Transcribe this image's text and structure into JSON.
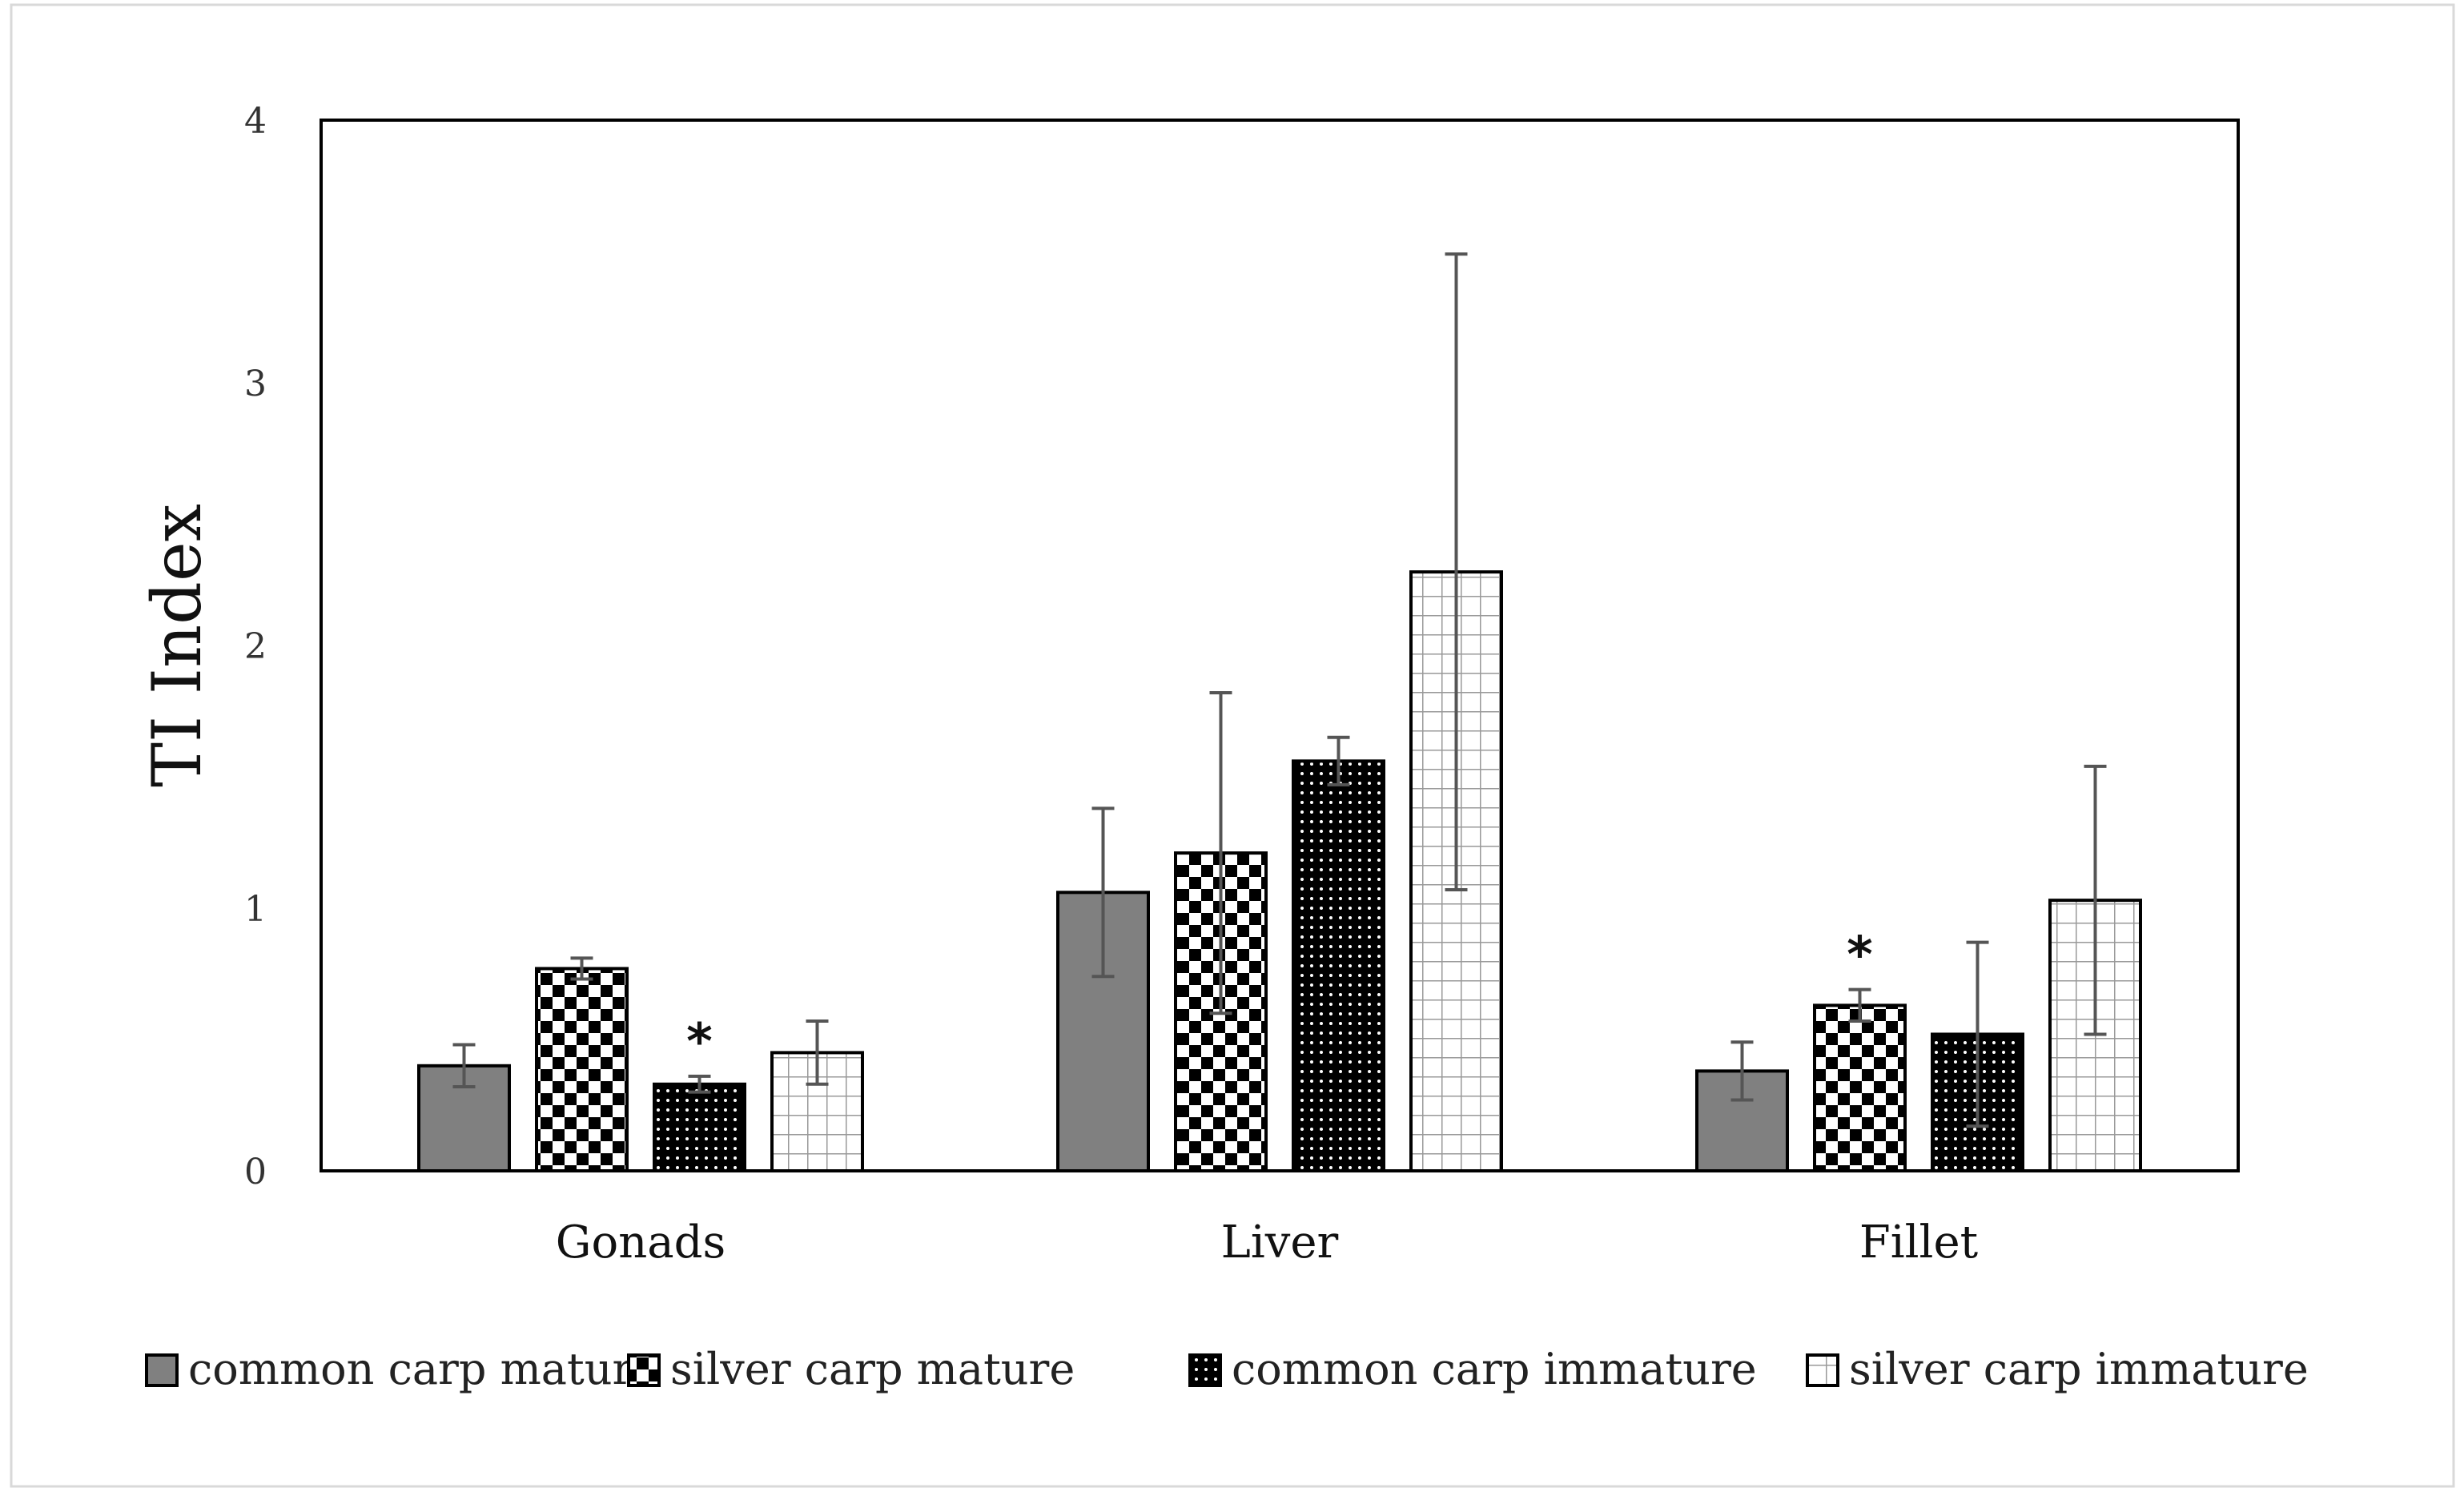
{
  "chart_data": {
    "type": "bar",
    "title": "",
    "xlabel": "",
    "ylabel": "TI Index",
    "ylim": [
      0,
      4
    ],
    "yticks": [
      0,
      1,
      2,
      3,
      4
    ],
    "categories": [
      "Gonads",
      "Liver",
      "Fillet"
    ],
    "series": [
      {
        "name": "common carp mature",
        "pattern": "solid-gray",
        "color": "#808080",
        "values": [
          0.4,
          1.06,
          0.38
        ],
        "errors": [
          0.08,
          0.32,
          0.11
        ]
      },
      {
        "name": "silver carp mature",
        "pattern": "checker",
        "color": "#000000",
        "values": [
          0.77,
          1.21,
          0.63
        ],
        "errors": [
          0.04,
          0.61,
          0.06
        ]
      },
      {
        "name": "common carp immature",
        "pattern": "dots",
        "color": "#000000",
        "values": [
          0.33,
          1.56,
          0.52
        ],
        "errors": [
          0.03,
          0.09,
          0.35
        ]
      },
      {
        "name": "silver carp immature",
        "pattern": "grid",
        "color": "#999999",
        "values": [
          0.45,
          2.28,
          1.03
        ],
        "errors": [
          0.12,
          1.21,
          0.51
        ]
      }
    ],
    "annotations": [
      {
        "text": "*",
        "category": "Gonads",
        "series": "common carp immature"
      },
      {
        "text": "*",
        "category": "Fillet",
        "series": "silver carp mature"
      }
    ],
    "grid": false,
    "legend_position": "bottom"
  }
}
